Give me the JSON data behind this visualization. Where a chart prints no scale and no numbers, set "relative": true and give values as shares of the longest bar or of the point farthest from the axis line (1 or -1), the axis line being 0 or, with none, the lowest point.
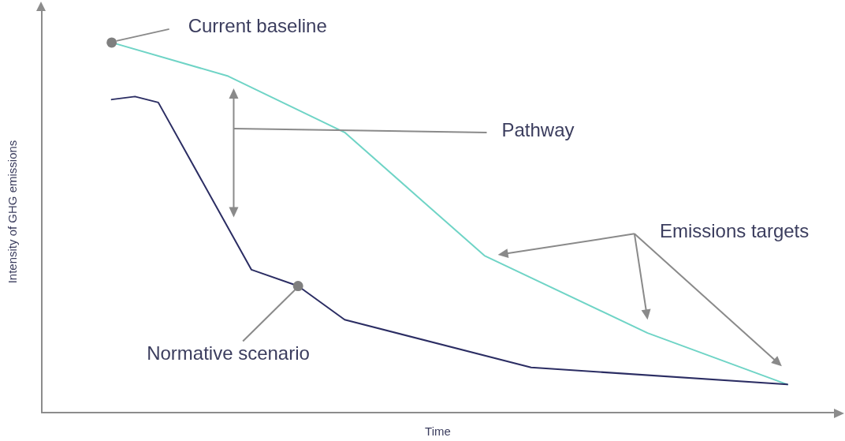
{
  "chart_data": {
    "type": "line",
    "relative": true,
    "xlabel": "Time",
    "ylabel": "Intensity of GHG emissions",
    "categories": [
      null,
      null,
      null,
      null,
      null,
      null,
      null,
      null,
      null,
      null,
      null,
      null,
      null,
      null,
      null,
      null,
      null,
      null,
      null,
      null,
      null,
      null,
      null,
      null,
      null,
      null,
      null,
      null,
      null,
      null,
      null,
      null,
      null,
      null,
      null
    ],
    "series": [
      {
        "color": "#6fd4c6",
        "values": [
          null,
          null,
          null,
          1,
          null,
          null,
          null,
          null,
          0.909,
          null,
          null,
          null,
          null,
          0.757,
          null,
          null,
          null,
          null,
          null,
          0.424,
          null,
          null,
          null,
          null,
          null,
          null,
          0.215,
          null,
          null,
          null,
          null,
          null,
          0.076,
          null,
          null
        ]
      },
      {
        "color": "#2b2d63",
        "values": [
          null,
          null,
          null,
          0.846,
          0.854,
          0.838,
          null,
          null,
          null,
          0.386,
          null,
          0.342,
          null,
          0.251,
          null,
          null,
          null,
          null,
          null,
          null,
          null,
          0.122,
          null,
          null,
          null,
          null,
          null,
          null,
          null,
          null,
          null,
          null,
          0.076,
          null,
          null
        ]
      }
    ],
    "annotations": [
      "Current baseline",
      "Pathway",
      "Emissions targets",
      "Normative scenario"
    ]
  }
}
